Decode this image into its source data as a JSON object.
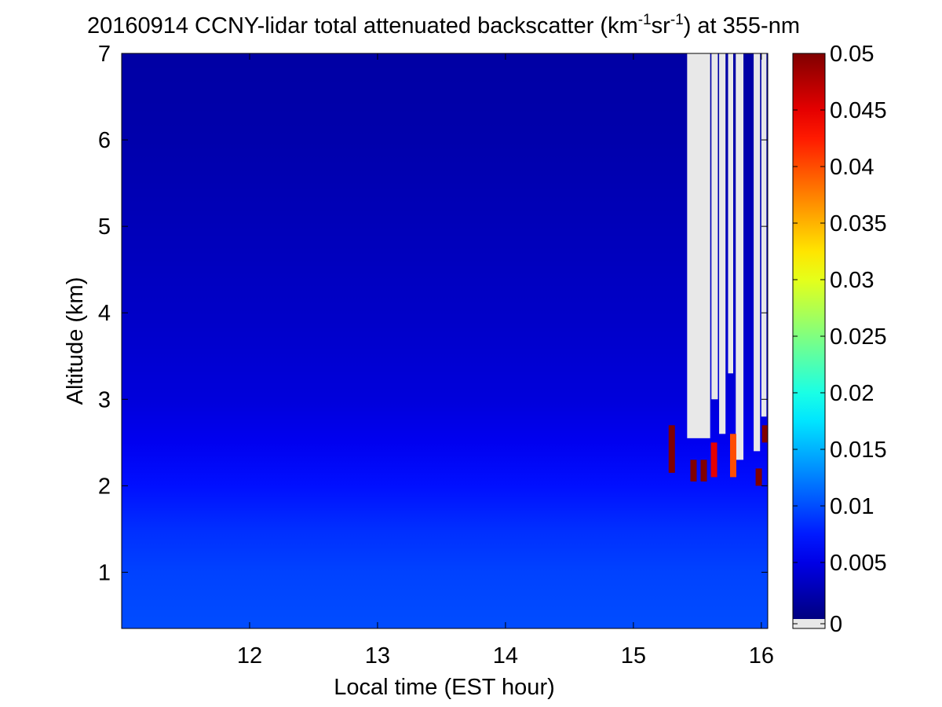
{
  "chart_data": {
    "type": "heatmap",
    "title": {
      "prefix": "20160914 CCNY-lidar total attenuated backscatter (km",
      "sup1": "-1",
      "mid": "sr",
      "sup2": "-1",
      "suffix": ") at 355-nm"
    },
    "xlabel": "Local time (EST hour)",
    "ylabel": "Altitude (km)",
    "xlim": [
      11.0,
      16.05
    ],
    "ylim": [
      0.35,
      7.0
    ],
    "x_ticks": [
      12,
      13,
      14,
      15,
      16
    ],
    "x_tick_labels": [
      "12",
      "13",
      "14",
      "15",
      "16"
    ],
    "y_ticks": [
      1,
      2,
      3,
      4,
      5,
      6,
      7
    ],
    "y_tick_labels": [
      "1",
      "2",
      "3",
      "4",
      "5",
      "6",
      "7"
    ],
    "colorbar": {
      "range": [
        0,
        0.05
      ],
      "ticks": [
        0,
        0.005,
        0.01,
        0.015,
        0.02,
        0.025,
        0.03,
        0.035,
        0.04,
        0.045,
        0.05
      ],
      "tick_labels": [
        "0",
        "0.005",
        "0.01",
        "0.015",
        "0.02",
        "0.025",
        "0.03",
        "0.035",
        "0.04",
        "0.045",
        "0.05"
      ],
      "colormap": "jet",
      "below_range_color": "#e8e8e8"
    },
    "altitude_profile": [
      {
        "altitude": 0.4,
        "value": 0.01
      },
      {
        "altitude": 1.0,
        "value": 0.0095
      },
      {
        "altitude": 1.5,
        "value": 0.0085
      },
      {
        "altitude": 2.0,
        "value": 0.007
      },
      {
        "altitude": 2.5,
        "value": 0.0055
      },
      {
        "altitude": 3.0,
        "value": 0.0045
      },
      {
        "altitude": 4.0,
        "value": 0.0035
      },
      {
        "altitude": 5.0,
        "value": 0.0028
      },
      {
        "altitude": 6.0,
        "value": 0.0022
      },
      {
        "altitude": 7.0,
        "value": 0.0018
      }
    ],
    "cloud_events": [
      {
        "time": 15.3,
        "altitude_base": 2.15,
        "altitude_top": 2.7,
        "value": 0.05
      },
      {
        "time": 15.47,
        "altitude_base": 2.05,
        "altitude_top": 2.3,
        "value": 0.05
      },
      {
        "time": 15.55,
        "altitude_base": 2.05,
        "altitude_top": 2.3,
        "value": 0.05
      },
      {
        "time": 15.63,
        "altitude_base": 2.1,
        "altitude_top": 2.5,
        "value": 0.045
      },
      {
        "time": 15.78,
        "altitude_base": 2.1,
        "altitude_top": 2.6,
        "value": 0.04
      },
      {
        "time": 15.98,
        "altitude_base": 2.0,
        "altitude_top": 2.2,
        "value": 0.05
      },
      {
        "time": 16.03,
        "altitude_base": 2.5,
        "altitude_top": 2.7,
        "value": 0.05
      }
    ],
    "missing_data_columns": [
      {
        "time_start": 15.42,
        "time_end": 15.6,
        "altitude_start": 2.55,
        "altitude_end": 7.0
      },
      {
        "time_start": 15.61,
        "time_end": 15.66,
        "altitude_start": 3.0,
        "altitude_end": 7.0
      },
      {
        "time_start": 15.67,
        "time_end": 15.72,
        "altitude_start": 2.6,
        "altitude_end": 7.0
      },
      {
        "time_start": 15.74,
        "time_end": 15.78,
        "altitude_start": 3.3,
        "altitude_end": 7.0
      },
      {
        "time_start": 15.8,
        "time_end": 15.86,
        "altitude_start": 2.3,
        "altitude_end": 7.0
      },
      {
        "time_start": 15.94,
        "time_end": 15.99,
        "altitude_start": 2.4,
        "altitude_end": 7.0
      },
      {
        "time_start": 16.0,
        "time_end": 16.04,
        "altitude_start": 2.8,
        "altitude_end": 7.0
      }
    ],
    "grid": false
  }
}
